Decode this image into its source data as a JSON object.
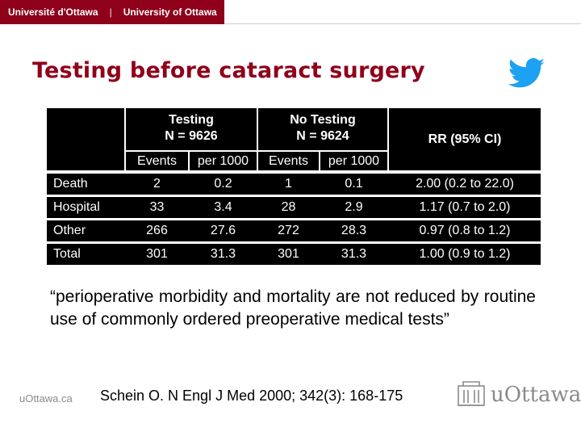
{
  "header": {
    "left_label": "Université d'Ottawa",
    "separator": "|",
    "right_label": "University of Ottawa"
  },
  "slide": {
    "title": "Testing before cataract surgery",
    "social_icon": "twitter-bird-icon"
  },
  "table": {
    "group_headers": [
      {
        "label": "Testing",
        "sub": "N = 9626"
      },
      {
        "label": "No Testing",
        "sub": "N = 9624"
      }
    ],
    "rr_header": "RR (95% CI)",
    "sub_headers": [
      "Events",
      "per 1000",
      "Events",
      "per 1000"
    ],
    "rows": [
      {
        "label": "Death",
        "cells": [
          "2",
          "0.2",
          "1",
          "0.1",
          "2.00 (0.2 to 22.0)"
        ]
      },
      {
        "label": "Hospital",
        "cells": [
          "33",
          "3.4",
          "28",
          "2.9",
          "1.17 (0.7 to 2.0)"
        ]
      },
      {
        "label": "Other",
        "cells": [
          "266",
          "27.6",
          "272",
          "28.3",
          "0.97 (0.8 to 1.2)"
        ]
      },
      {
        "label": "Total",
        "cells": [
          "301",
          "31.3",
          "301",
          "31.3",
          "1.00 (0.9 to 1.2)"
        ]
      }
    ]
  },
  "quote": "“perioperative morbidity and mortality are not reduced by routine use of commonly ordered preoperative medical tests”",
  "footer": {
    "site": "uOttawa.ca",
    "citation": "Schein O. N Engl J Med 2000; 342(3): 168-175",
    "logo_text": "uOttawa",
    "logo_icon": "university-building-icon"
  },
  "colors": {
    "brand": "#8f001a",
    "table_bg": "#000000",
    "muted": "#8a8a8a"
  }
}
